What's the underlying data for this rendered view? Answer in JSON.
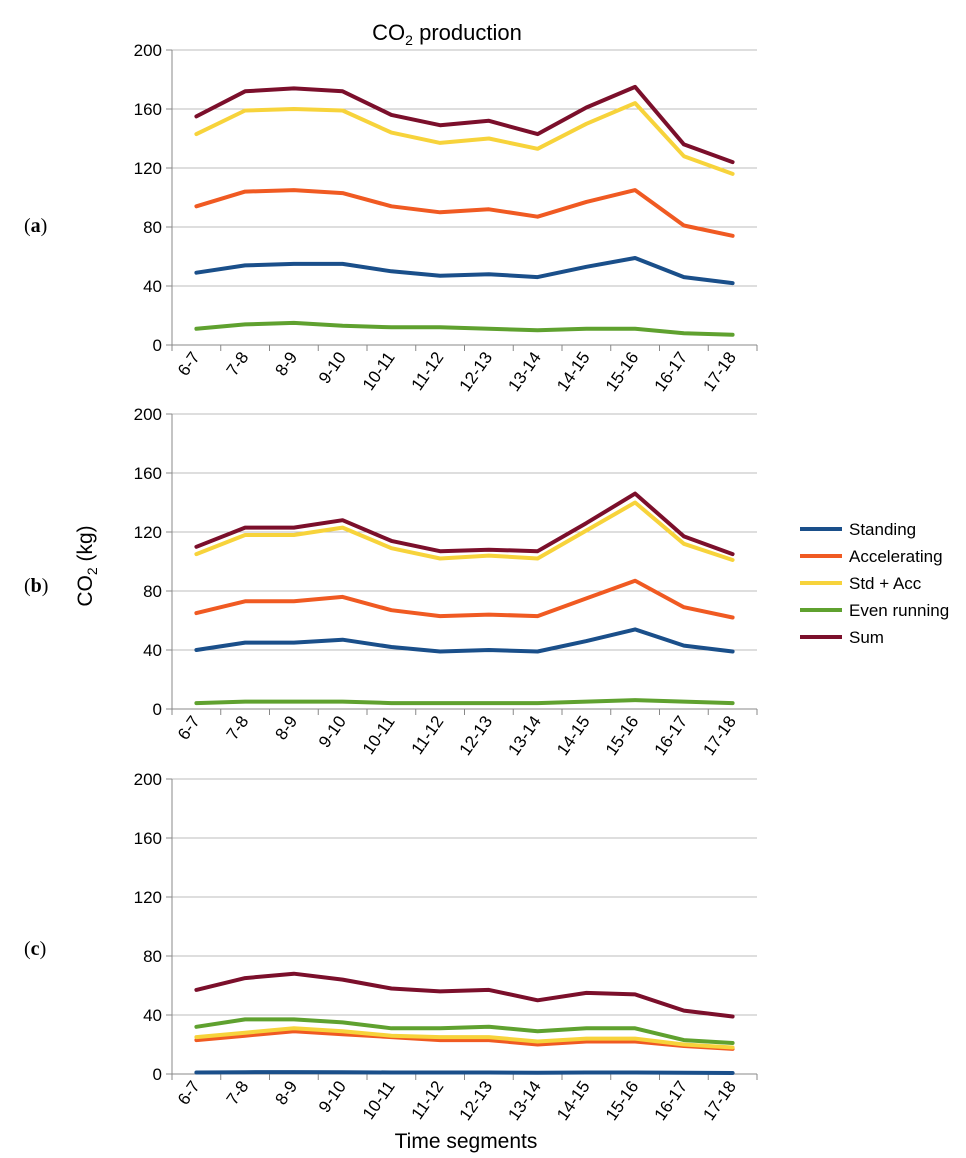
{
  "figure": {
    "title": "CO",
    "title_sub": "2",
    "title_rest": " production",
    "y_axis_label": "CO",
    "y_axis_label_sub": "2",
    "y_axis_label_rest": " (kg)",
    "x_axis_label": "Time segments",
    "panel_labels": [
      "a",
      "b",
      "c"
    ]
  },
  "legend": [
    {
      "name": "Standing",
      "color": "#1a4f8a"
    },
    {
      "name": "Accelerating",
      "color": "#f05a22"
    },
    {
      "name": "Std + Acc",
      "color": "#f7d33b"
    },
    {
      "name": "Even running",
      "color": "#5fa12f"
    },
    {
      "name": "Sum",
      "color": "#7b0f2b"
    }
  ],
  "chart_data": [
    {
      "type": "line",
      "panel": "a",
      "categories": [
        "6-7",
        "7-8",
        "8-9",
        "9-10",
        "10-11",
        "11-12",
        "12-13",
        "13-14",
        "14-15",
        "15-16",
        "16-17",
        "17-18"
      ],
      "ylim": [
        0,
        200
      ],
      "yticks": [
        0,
        40,
        80,
        120,
        160,
        200
      ],
      "grid": true,
      "series": [
        {
          "name": "Standing",
          "color": "#1a4f8a",
          "values": [
            49,
            54,
            55,
            55,
            50,
            47,
            48,
            46,
            53,
            59,
            46,
            42
          ]
        },
        {
          "name": "Accelerating",
          "color": "#f05a22",
          "values": [
            94,
            104,
            105,
            103,
            94,
            90,
            92,
            87,
            97,
            105,
            81,
            74
          ]
        },
        {
          "name": "Std + Acc",
          "color": "#f7d33b",
          "values": [
            143,
            159,
            160,
            159,
            144,
            137,
            140,
            133,
            150,
            164,
            128,
            116
          ]
        },
        {
          "name": "Even running",
          "color": "#5fa12f",
          "values": [
            11,
            14,
            15,
            13,
            12,
            12,
            11,
            10,
            11,
            11,
            8,
            7
          ]
        },
        {
          "name": "Sum",
          "color": "#7b0f2b",
          "values": [
            155,
            172,
            174,
            172,
            156,
            149,
            152,
            143,
            161,
            175,
            136,
            124
          ]
        }
      ]
    },
    {
      "type": "line",
      "panel": "b",
      "categories": [
        "6-7",
        "7-8",
        "8-9",
        "9-10",
        "10-11",
        "11-12",
        "12-13",
        "13-14",
        "14-15",
        "15-16",
        "16-17",
        "17-18"
      ],
      "ylim": [
        0,
        200
      ],
      "yticks": [
        0,
        40,
        80,
        120,
        160,
        200
      ],
      "grid": true,
      "series": [
        {
          "name": "Standing",
          "color": "#1a4f8a",
          "values": [
            40,
            45,
            45,
            47,
            42,
            39,
            40,
            39,
            46,
            54,
            43,
            39
          ]
        },
        {
          "name": "Accelerating",
          "color": "#f05a22",
          "values": [
            65,
            73,
            73,
            76,
            67,
            63,
            64,
            63,
            75,
            87,
            69,
            62
          ]
        },
        {
          "name": "Std + Acc",
          "color": "#f7d33b",
          "values": [
            105,
            118,
            118,
            123,
            109,
            102,
            104,
            102,
            121,
            140,
            112,
            101
          ]
        },
        {
          "name": "Even running",
          "color": "#5fa12f",
          "values": [
            4,
            5,
            5,
            5,
            4,
            4,
            4,
            4,
            5,
            6,
            5,
            4
          ]
        },
        {
          "name": "Sum",
          "color": "#7b0f2b",
          "values": [
            110,
            123,
            123,
            128,
            114,
            107,
            108,
            107,
            126,
            146,
            117,
            105
          ]
        }
      ]
    },
    {
      "type": "line",
      "panel": "c",
      "categories": [
        "6-7",
        "7-8",
        "8-9",
        "9-10",
        "10-11",
        "11-12",
        "12-13",
        "13-14",
        "14-15",
        "15-16",
        "16-17",
        "17-18"
      ],
      "ylim": [
        0,
        200
      ],
      "yticks": [
        0,
        40,
        80,
        120,
        160,
        200
      ],
      "grid": true,
      "series": [
        {
          "name": "Standing",
          "color": "#1a4f8a",
          "values": [
            1,
            1.2,
            1.3,
            1.2,
            1,
            1,
            1,
            0.9,
            1,
            1,
            0.8,
            0.7
          ]
        },
        {
          "name": "Accelerating",
          "color": "#f05a22",
          "values": [
            23,
            26,
            29,
            27,
            25,
            23,
            23,
            20,
            22,
            22,
            19,
            17
          ]
        },
        {
          "name": "Std + Acc",
          "color": "#f7d33b",
          "values": [
            25,
            28,
            31,
            29,
            26,
            25,
            25,
            22,
            24,
            24,
            20,
            18
          ]
        },
        {
          "name": "Even running",
          "color": "#5fa12f",
          "values": [
            32,
            37,
            37,
            35,
            31,
            31,
            32,
            29,
            31,
            31,
            23,
            21
          ]
        },
        {
          "name": "Sum",
          "color": "#7b0f2b",
          "values": [
            57,
            65,
            68,
            64,
            58,
            56,
            57,
            50,
            55,
            54,
            43,
            39
          ]
        }
      ]
    }
  ]
}
